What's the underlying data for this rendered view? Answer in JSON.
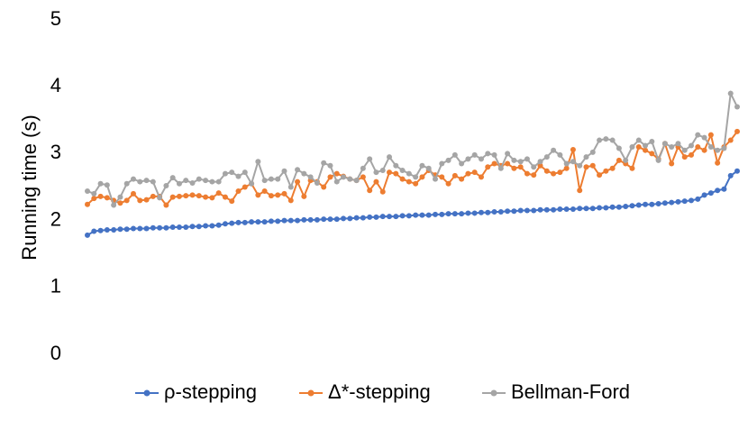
{
  "chart_data": {
    "type": "line",
    "ylabel": "Running time (s)",
    "categories": [
      null,
      null,
      null,
      null,
      null,
      null,
      null,
      null,
      null,
      null,
      null,
      null,
      null,
      null,
      null,
      null,
      null,
      null,
      null,
      null,
      null,
      null,
      null,
      null,
      null,
      null,
      null,
      null,
      null,
      null,
      null,
      null,
      null,
      null,
      null,
      null,
      null,
      null,
      null,
      null,
      null,
      null,
      null,
      null,
      null,
      null,
      null,
      null,
      null,
      null,
      null,
      null,
      null,
      null,
      null,
      null,
      null,
      null,
      null,
      null,
      null,
      null,
      null,
      null,
      null,
      null,
      null,
      null,
      null,
      null,
      null,
      null,
      null,
      null,
      null,
      null,
      null,
      null,
      null,
      null,
      null,
      null,
      null,
      null,
      null,
      null,
      null,
      null,
      null,
      null,
      null,
      null,
      null,
      null,
      null,
      null,
      null,
      null,
      null,
      null
    ],
    "series": [
      {
        "name": "ρ-stepping",
        "color": "#4472c4",
        "values": [
          1.78,
          1.84,
          1.85,
          1.86,
          1.86,
          1.87,
          1.87,
          1.88,
          1.88,
          1.88,
          1.89,
          1.89,
          1.89,
          1.9,
          1.9,
          1.9,
          1.91,
          1.91,
          1.92,
          1.92,
          1.93,
          1.95,
          1.96,
          1.97,
          1.97,
          1.98,
          1.98,
          1.98,
          1.99,
          1.99,
          2.0,
          2.0,
          2.0,
          2.01,
          2.01,
          2.01,
          2.02,
          2.02,
          2.02,
          2.03,
          2.03,
          2.04,
          2.04,
          2.05,
          2.05,
          2.06,
          2.06,
          2.06,
          2.07,
          2.07,
          2.08,
          2.08,
          2.08,
          2.09,
          2.09,
          2.1,
          2.1,
          2.1,
          2.11,
          2.11,
          2.12,
          2.12,
          2.13,
          2.13,
          2.14,
          2.14,
          2.15,
          2.15,
          2.15,
          2.16,
          2.16,
          2.16,
          2.17,
          2.17,
          2.17,
          2.18,
          2.18,
          2.18,
          2.19,
          2.19,
          2.2,
          2.2,
          2.21,
          2.22,
          2.23,
          2.24,
          2.24,
          2.25,
          2.26,
          2.27,
          2.28,
          2.29,
          2.3,
          2.32,
          2.38,
          2.41,
          2.45,
          2.47,
          2.67,
          2.74
        ]
      },
      {
        "name": "Δ*-stepping",
        "color": "#ed7d31",
        "values": [
          2.24,
          2.33,
          2.36,
          2.34,
          2.3,
          2.26,
          2.3,
          2.4,
          2.3,
          2.31,
          2.36,
          2.36,
          2.23,
          2.35,
          2.36,
          2.37,
          2.38,
          2.37,
          2.35,
          2.34,
          2.41,
          2.35,
          2.29,
          2.44,
          2.5,
          2.55,
          2.38,
          2.44,
          2.37,
          2.38,
          2.4,
          2.3,
          2.58,
          2.36,
          2.6,
          2.58,
          2.5,
          2.65,
          2.7,
          2.66,
          2.62,
          2.6,
          2.65,
          2.45,
          2.58,
          2.43,
          2.72,
          2.7,
          2.62,
          2.58,
          2.55,
          2.65,
          2.75,
          2.68,
          2.65,
          2.55,
          2.67,
          2.62,
          2.7,
          2.72,
          2.65,
          2.8,
          2.85,
          2.82,
          2.85,
          2.78,
          2.8,
          2.7,
          2.68,
          2.82,
          2.74,
          2.7,
          2.72,
          2.78,
          3.06,
          2.45,
          2.8,
          2.82,
          2.68,
          2.74,
          2.78,
          2.9,
          2.85,
          2.78,
          3.1,
          3.05,
          3.0,
          2.92,
          3.15,
          2.85,
          3.1,
          2.95,
          2.98,
          3.1,
          3.05,
          3.28,
          2.86,
          3.1,
          3.2,
          3.33
        ]
      },
      {
        "name": "Bellman-Ford",
        "color": "#a5a5a5",
        "values": [
          2.44,
          2.4,
          2.55,
          2.53,
          2.23,
          2.35,
          2.55,
          2.62,
          2.58,
          2.6,
          2.58,
          2.34,
          2.52,
          2.64,
          2.55,
          2.6,
          2.56,
          2.62,
          2.6,
          2.58,
          2.58,
          2.7,
          2.72,
          2.66,
          2.72,
          2.55,
          2.88,
          2.6,
          2.62,
          2.62,
          2.74,
          2.5,
          2.76,
          2.7,
          2.65,
          2.56,
          2.86,
          2.82,
          2.58,
          2.65,
          2.62,
          2.6,
          2.78,
          2.92,
          2.72,
          2.75,
          2.95,
          2.82,
          2.75,
          2.7,
          2.65,
          2.82,
          2.78,
          2.62,
          2.85,
          2.9,
          2.98,
          2.85,
          2.92,
          2.98,
          2.92,
          3.0,
          2.98,
          2.78,
          3.0,
          2.9,
          2.88,
          2.92,
          2.8,
          2.88,
          2.95,
          3.05,
          2.98,
          2.85,
          2.88,
          2.82,
          2.95,
          3.02,
          3.2,
          3.22,
          3.2,
          3.08,
          2.9,
          3.1,
          3.2,
          3.12,
          3.18,
          2.9,
          3.15,
          3.1,
          3.15,
          3.05,
          3.12,
          3.28,
          3.24,
          3.1,
          3.05,
          3.08,
          3.9,
          3.7
        ]
      }
    ],
    "ylim": [
      0,
      5
    ],
    "yticks": [
      0,
      1,
      2,
      3,
      4,
      5
    ],
    "grid": false,
    "legend": "bottom"
  }
}
